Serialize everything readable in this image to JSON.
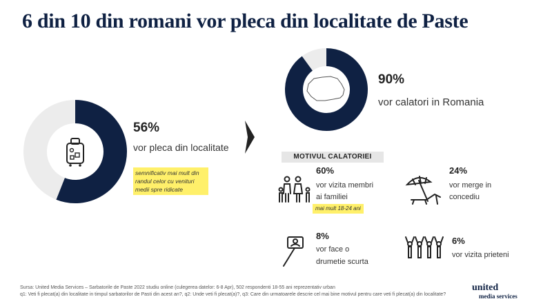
{
  "title": "6 din 10 din romani vor pleca din localitate de Paste",
  "colors": {
    "navy": "#0f2143",
    "light": "#ececec",
    "highlight": "#fff06a"
  },
  "chart_data": [
    {
      "type": "pie",
      "name": "leave",
      "values": [
        56,
        44
      ],
      "pct_label": "56%",
      "label": "vor pleca din localitate"
    },
    {
      "type": "pie",
      "name": "romania",
      "values": [
        90,
        10
      ],
      "pct_label": "90%",
      "label": "vor calatori in Romania"
    }
  ],
  "note_main": "semnificativ mai mult din randul celor cu venituri medii spre ridicate",
  "reasons": {
    "header": "MOTIVUL CALATORIEI",
    "family": {
      "pct": "60%",
      "line1": "vor vizita membri",
      "line2": "ai familiei",
      "note": "mai mult 18-24 ani",
      "icon": "family-icon"
    },
    "vacation": {
      "pct": "24%",
      "line1": "vor merge in",
      "line2": "concediu",
      "icon": "beach-umbrella-icon"
    },
    "hike": {
      "pct": "8%",
      "line1": "vor face o",
      "line2": "drumetie scurta",
      "icon": "selfie-stick-icon"
    },
    "friends": {
      "pct": "6%",
      "line1": "vor vizita prieteni",
      "icon": "friends-group-icon"
    }
  },
  "footer": {
    "line1": "Sursa: United Media Services – Sarbatorile de Paste 2022 studiu online (culegerea datelor: 6-8 Apr), 502 respondenti 18-55 ani reprezentativ urban",
    "line2": "q1: Veti fi plecat(a) din localitate in timpul sarbatorilor de Pasti din acest an?, q2: Unde veti fi plecat(a)?, q3: Care din urmatoarele descrie cel mai bine motivul pentru care veti fi plecat(a) din localitate?"
  },
  "logo": {
    "line1": "united",
    "line2": "media services"
  }
}
